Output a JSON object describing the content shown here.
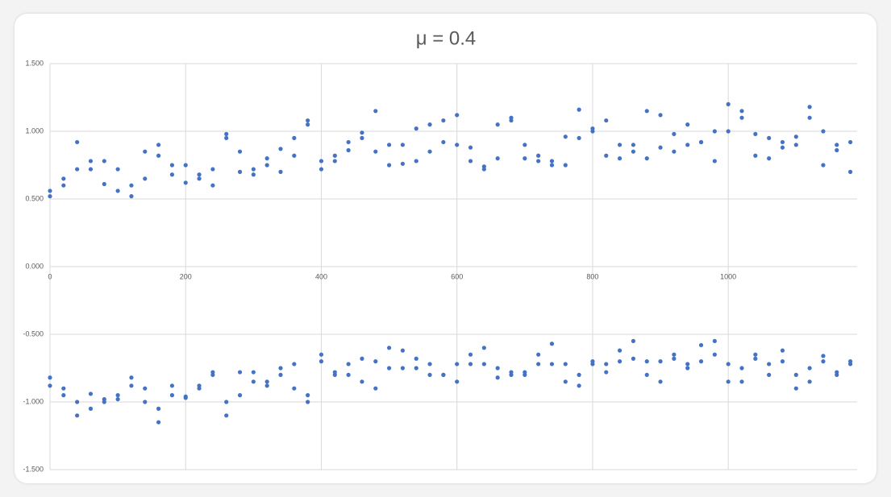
{
  "chart_data": {
    "type": "scatter",
    "title": "μ = 0.4",
    "xlim": [
      0,
      1190
    ],
    "xticks": [
      0,
      200,
      400,
      600,
      800,
      1000
    ],
    "ylim": [
      -1.5,
      1.5
    ],
    "yticks": [
      {
        "value": -1.5,
        "label": "-1.500"
      },
      {
        "value": -1,
        "label": "-1.000"
      },
      {
        "value": -0.5,
        "label": "-0.500"
      },
      {
        "value": 0,
        "label": "0.000"
      },
      {
        "value": 0.5,
        "label": "0.500"
      },
      {
        "value": 1,
        "label": "1.000"
      },
      {
        "value": 1.5,
        "label": "1.500"
      }
    ],
    "grid": true,
    "x": [
      0,
      20,
      40,
      60,
      80,
      100,
      120,
      140,
      160,
      180,
      200,
      220,
      240,
      260,
      280,
      300,
      320,
      340,
      360,
      380,
      400,
      420,
      440,
      460,
      480,
      500,
      520,
      540,
      560,
      580,
      600,
      620,
      640,
      660,
      680,
      700,
      720,
      740,
      760,
      780,
      800,
      820,
      840,
      860,
      880,
      900,
      920,
      940,
      960,
      980,
      1000,
      1020,
      1040,
      1060,
      1080,
      1100,
      1120,
      1140,
      1160,
      1180
    ],
    "series": [
      {
        "color": "#4472c4",
        "values": [
          0.52,
          0.65,
          0.92,
          0.78,
          0.61,
          0.56,
          0.52,
          0.85,
          0.9,
          0.68,
          0.62,
          0.65,
          0.6,
          0.98,
          0.85,
          0.68,
          0.75,
          0.7,
          0.95,
          1.05,
          0.72,
          0.78,
          0.86,
          0.95,
          1.15,
          0.9,
          0.76,
          0.78,
          0.85,
          1.08,
          1.12,
          0.88,
          0.72,
          1.05,
          1.08,
          0.8,
          0.78,
          0.75,
          0.96,
          1.16,
          1.0,
          0.82,
          0.8,
          0.9,
          1.15,
          1.12,
          0.85,
          0.9,
          0.92,
          1.0,
          1.2,
          1.1,
          0.82,
          0.95,
          0.88,
          0.9,
          1.18,
          1.0,
          0.86,
          0.92
        ]
      },
      {
        "color": "#4472c4",
        "values": [
          0.56,
          0.6,
          0.72,
          0.72,
          0.78,
          0.72,
          0.6,
          0.65,
          0.82,
          0.75,
          0.75,
          0.68,
          0.72,
          0.95,
          0.7,
          0.72,
          0.8,
          0.87,
          0.82,
          1.08,
          0.78,
          0.82,
          0.92,
          0.99,
          0.85,
          0.75,
          0.9,
          1.02,
          1.05,
          0.92,
          0.9,
          0.78,
          0.74,
          0.8,
          1.1,
          0.9,
          0.82,
          0.78,
          0.75,
          0.95,
          1.02,
          1.08,
          0.9,
          0.85,
          0.8,
          0.88,
          0.98,
          1.05,
          0.92,
          0.78,
          1.0,
          1.15,
          0.98,
          0.8,
          0.92,
          0.96,
          1.1,
          0.75,
          0.9,
          0.7
        ]
      },
      {
        "color": "#4472c4",
        "values": [
          -0.82,
          -0.9,
          -1.1,
          -1.05,
          -0.98,
          -0.98,
          -0.88,
          -0.9,
          -1.15,
          -0.95,
          -0.96,
          -0.88,
          -0.78,
          -1.1,
          -0.95,
          -0.78,
          -0.88,
          -0.8,
          -0.72,
          -1.0,
          -0.7,
          -0.78,
          -0.8,
          -0.68,
          -0.9,
          -0.75,
          -0.62,
          -0.75,
          -0.8,
          -0.8,
          -0.85,
          -0.65,
          -0.6,
          -0.82,
          -0.78,
          -0.8,
          -0.65,
          -0.57,
          -0.72,
          -0.88,
          -0.72,
          -0.72,
          -0.62,
          -0.55,
          -0.7,
          -0.85,
          -0.68,
          -0.72,
          -0.58,
          -0.55,
          -0.72,
          -0.85,
          -0.65,
          -0.72,
          -0.62,
          -0.9,
          -0.75,
          -0.66,
          -0.8,
          -0.7
        ]
      },
      {
        "color": "#4472c4",
        "values": [
          -0.88,
          -0.95,
          -1.0,
          -0.94,
          -1.0,
          -0.95,
          -0.82,
          -1.0,
          -1.05,
          -0.88,
          -0.97,
          -0.9,
          -0.8,
          -1.0,
          -0.78,
          -0.85,
          -0.85,
          -0.75,
          -0.9,
          -0.95,
          -0.65,
          -0.8,
          -0.72,
          -0.85,
          -0.7,
          -0.6,
          -0.75,
          -0.68,
          -0.72,
          -0.8,
          -0.72,
          -0.72,
          -0.72,
          -0.75,
          -0.8,
          -0.78,
          -0.72,
          -0.72,
          -0.85,
          -0.8,
          -0.7,
          -0.78,
          -0.7,
          -0.68,
          -0.8,
          -0.7,
          -0.65,
          -0.75,
          -0.7,
          -0.65,
          -0.85,
          -0.75,
          -0.68,
          -0.8,
          -0.7,
          -0.8,
          -0.85,
          -0.7,
          -0.78,
          -0.72
        ]
      }
    ]
  }
}
